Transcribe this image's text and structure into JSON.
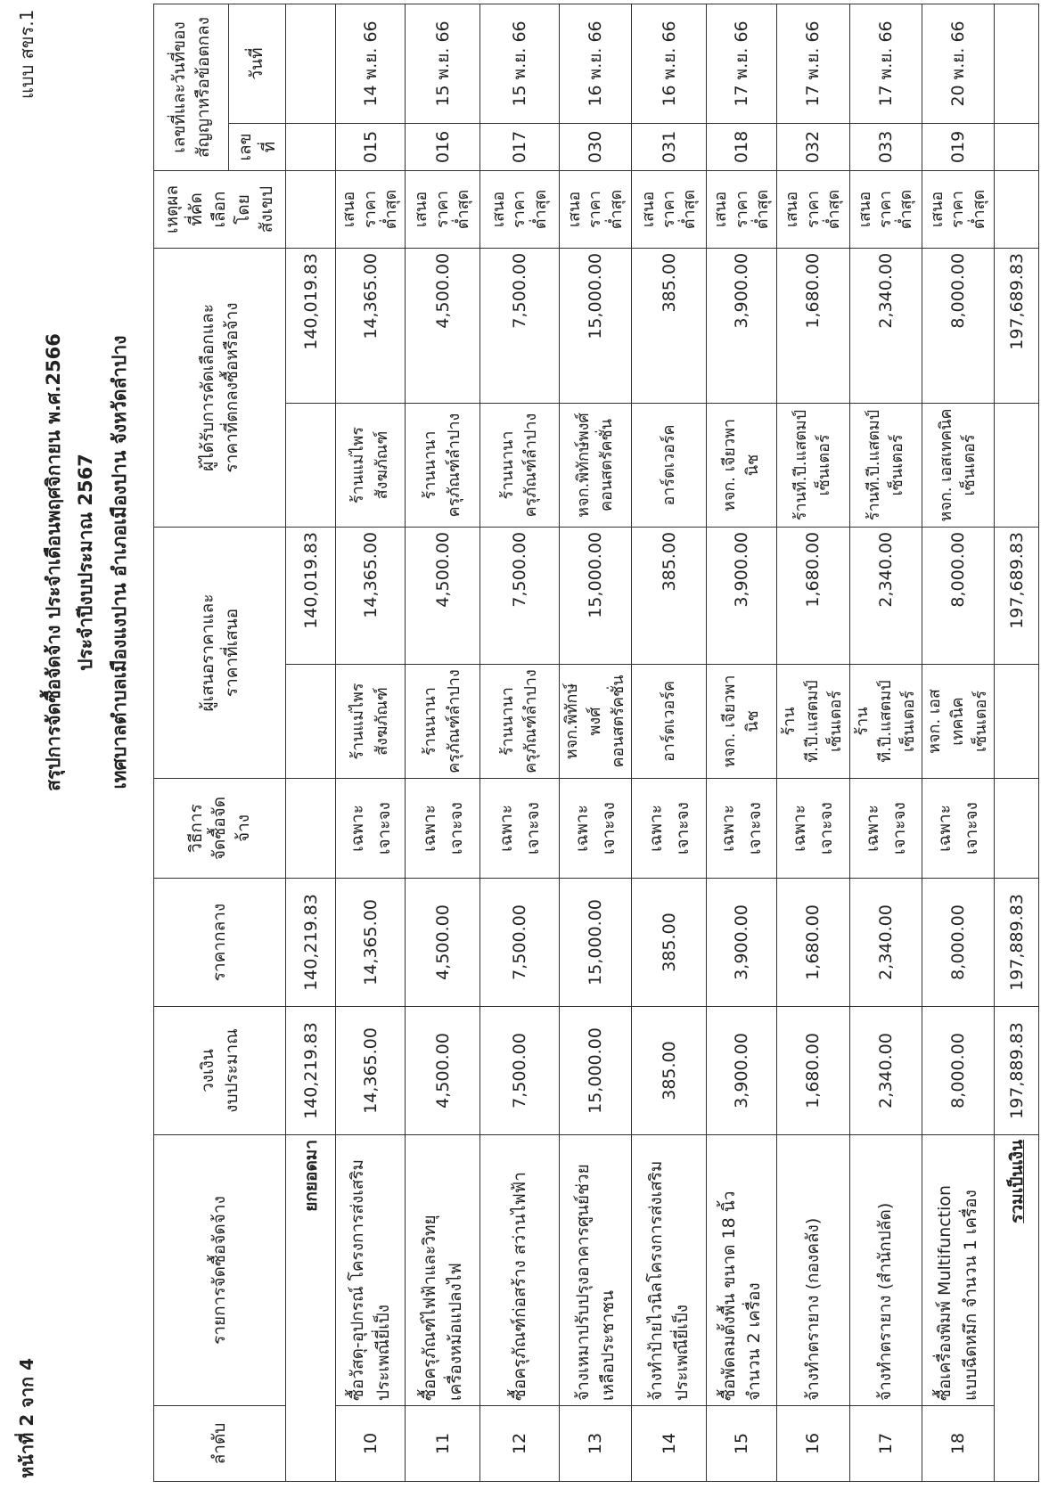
{
  "page_number": "หน้าที่ 2 จาก 4",
  "form_code": "แบบ สขร.1",
  "title": {
    "line1": "สรุปการจัดซื้อจัดจ้าง ประจำเดือนพฤศจิกายน พ.ศ.2566",
    "line2": "ประจำปีงบประมาณ 2567",
    "line3": "เทศบาลตำบลเมืองแงปาน อำเภอเมืองปาน จังหวัดลำปาง"
  },
  "headers": {
    "no": "ลำดับ",
    "item": "รายการจัดซื้อจัดจ้าง",
    "budget": "วงเงิน\nงบประมาณ",
    "median": "ราคากลาง",
    "method": "วิธีการ\nจัดซื้อจัดจ้าง",
    "bidders": "ผู้เสนอราคาและ\nราคาที่เสนอ",
    "winner": "ผู้ได้รับการคัดเลือกและ\nราคาที่ตกลงซื้อหรือจ้าง",
    "reason": "เหตุผล\nที่คัดเลือก\nโดยสังเขป",
    "contract": "เลขที่และวันที่ของ\nสัญญาหรือข้อตกลง",
    "contract_no": "เลขที่",
    "contract_date": "วันที่"
  },
  "carry_forward": {
    "label": "ยกยอดมา",
    "budget": "140,219.83",
    "median": "140,219.83",
    "bid_price": "140,019.83",
    "win_price": "140,019.83"
  },
  "rows": [
    {
      "no": "10",
      "item": "ซื้อวัสดุ-อุปกรณ์ โครงการส่งเสริม\nประเพณียี่เป็ง",
      "budget": "14,365.00",
      "median": "14,365.00",
      "method": "เฉพาะเจาะจง",
      "bidder": "ร้านแม่ไพร\nสังฆภัณฑ์",
      "bid_price": "14,365.00",
      "winner": "ร้านแม่ไพร\nสังฆภัณฑ์",
      "win_price": "14,365.00",
      "reason": "เสนอราคา\nต่ำสุด",
      "contract_no": "015",
      "contract_date": "14 พ.ย. 66"
    },
    {
      "no": "11",
      "item": "ซื้อครุภัณฑ์ไฟฟ้าและวิทยุ\nเครื่องหม้อแปลงไฟ",
      "budget": "4,500.00",
      "median": "4,500.00",
      "method": "เฉพาะเจาะจง",
      "bidder": "ร้านนานา\nครุภัณฑ์ลำปาง",
      "bid_price": "4,500.00",
      "winner": "ร้านนานา\nครุภัณฑ์ลำปาง",
      "win_price": "4,500.00",
      "reason": "เสนอราคา\nต่ำสุด",
      "contract_no": "016",
      "contract_date": "15 พ.ย. 66"
    },
    {
      "no": "12",
      "item": "ซื้อครุภัณฑ์ก่อสร้าง สว่านไฟฟ้า",
      "budget": "7,500.00",
      "median": "7,500.00",
      "method": "เฉพาะเจาะจง",
      "bidder": "ร้านนานา\nครุภัณฑ์ลำปาง",
      "bid_price": "7,500.00",
      "winner": "ร้านนานา\nครุภัณฑ์ลำปาง",
      "win_price": "7,500.00",
      "reason": "เสนอราคา\nต่ำสุด",
      "contract_no": "017",
      "contract_date": "15 พ.ย. 66"
    },
    {
      "no": "13",
      "item": "จ้างเหมาปรับปรุงอาคารศูนย์ช่วย\nเหลือประชาชน",
      "budget": "15,000.00",
      "median": "15,000.00",
      "method": "เฉพาะเจาะจง",
      "bidder": "หจก.พิทักษ์พงศ์\nคอนสตรัคชั่น",
      "bid_price": "15,000.00",
      "winner": "หจก.พิทักษ์พงศ์\nคอนสตรัคชั่น",
      "win_price": "15,000.00",
      "reason": "เสนอราคา\nต่ำสุด",
      "contract_no": "030",
      "contract_date": "16 พ.ย. 66"
    },
    {
      "no": "14",
      "item": "จ้างทำป้ายไวนิลโครงการส่งเสริม\nประเพณียี่เป็ง",
      "budget": "385.00",
      "median": "385.00",
      "method": "เฉพาะเจาะจง",
      "bidder": "อาร์ตเวอร์ค",
      "bid_price": "385.00",
      "winner": "อาร์ตเวอร์ค",
      "win_price": "385.00",
      "reason": "เสนอราคา\nต่ำสุด",
      "contract_no": "031",
      "contract_date": "16 พ.ย. 66"
    },
    {
      "no": "15",
      "item": "ซื้อพัดลมตั้งพื้น ขนาด 18 นิ้ว\nจำนวน 2 เครื่อง",
      "budget": "3,900.00",
      "median": "3,900.00",
      "method": "เฉพาะเจาะจง",
      "bidder": "หจก. เจียวพานิช",
      "bid_price": "3,900.00",
      "winner": "หจก. เจียวพานิช",
      "win_price": "3,900.00",
      "reason": "เสนอราคา\nต่ำสุด",
      "contract_no": "018",
      "contract_date": "17 พ.ย. 66"
    },
    {
      "no": "16",
      "item": "จ้างทำตรายาง (กองคลัง)",
      "budget": "1,680.00",
      "median": "1,680.00",
      "method": "เฉพาะเจาะจง",
      "bidder": "ร้านที.ปี.แสตมป์\nเซ็นเตอร์",
      "bid_price": "1,680.00",
      "winner": "ร้านที.ปี.แสตมป์\nเซ็นเตอร์",
      "win_price": "1,680.00",
      "reason": "เสนอราคา\nต่ำสุด",
      "contract_no": "032",
      "contract_date": "17 พ.ย. 66"
    },
    {
      "no": "17",
      "item": "จ้างทำตรายาง (สำนักปลัด)",
      "budget": "2,340.00",
      "median": "2,340.00",
      "method": "เฉพาะเจาะจง",
      "bidder": "ร้านที.ปี.แสตมป์\nเซ็นเตอร์",
      "bid_price": "2,340.00",
      "winner": "ร้านที.ปี.แสตมป์\nเซ็นเตอร์",
      "win_price": "2,340.00",
      "reason": "เสนอราคา\nต่ำสุด",
      "contract_no": "033",
      "contract_date": "17 พ.ย. 66"
    },
    {
      "no": "18",
      "item": "ซื้อเครื่องพิมพ์ Multifunction\nแบบฉีดหมึก จำนวน 1 เครื่อง",
      "budget": "8,000.00",
      "median": "8,000.00",
      "method": "เฉพาะเจาะจง",
      "bidder": "หจก. เอสเทคนิค\nเซ็นเตอร์",
      "bid_price": "8,000.00",
      "winner": "หจก. เอสเทคนิค\nเซ็นเตอร์",
      "win_price": "8,000.00",
      "reason": "เสนอราคา\nต่ำสุด",
      "contract_no": "019",
      "contract_date": "20 พ.ย. 66"
    }
  ],
  "total": {
    "label": "รวมเป็นเงิน",
    "budget": "197,889.83",
    "median": "197,889.83",
    "bid_price": "197,689.83",
    "win_price": "197,689.83"
  }
}
